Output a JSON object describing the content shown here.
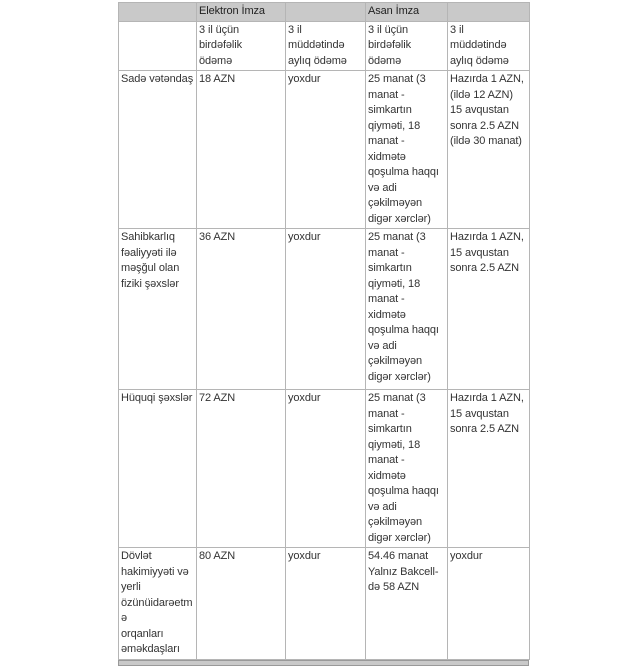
{
  "header": {
    "group1": "Elektron İmza",
    "group2": "Asan İmza"
  },
  "subheader": [
    "3 il üçün\nbirdəfəlik\nödəmə",
    "3 il\nmüddətində\naylıq ödəmə",
    "3 il üçün\nbirdəfəlik\nödəmə",
    "3 il\nmüddətində\naylıq ödəmə"
  ],
  "rows": [
    {
      "label": "Sadə vətəndaş",
      "e1": "18 AZN",
      "e2": "yoxdur",
      "a1": "25 manat (3\nmanat -\nsimkartın\nqiyməti, 18\nmanat -\nxidmətə\nqoşulma haqqı\nvə adi\nçəkilməyən\ndigər xərclər)",
      "a2": "Hazırda 1 AZN,\n(ildə 12 AZN)\n15 avqustan\nsonra 2.5 AZN\n(ildə 30 manat)"
    },
    {
      "label": "Sahibkarlıq\nfəaliyyəti ilə\nməşğul olan\nfiziki şəxslər",
      "e1": "36 AZN",
      "e2": "yoxdur",
      "a1": "25 manat (3\nmanat -\nsimkartın\nqiyməti, 18\nmanat -\nxidmətə\nqoşulma haqqı\nvə adi\nçəkilməyən\ndigər xərclər)",
      "a2": "Hazırda 1 AZN,\n15 avqustan\nsonra 2.5 AZN"
    },
    {
      "label": "Hüquqi şəxslər",
      "e1": "72 AZN",
      "e2": "yoxdur",
      "a1": "25 manat (3\nmanat -\nsimkartın\nqiyməti, 18\nmanat -\nxidmətə\nqoşulma haqqı\nvə adi\nçəkilməyən\ndigər xərclər)",
      "a2": "Hazırda 1 AZN,\n15 avqustan\nsonra 2.5 AZN"
    },
    {
      "label": "Dövlət\nhakimiyyəti və\nyerli\nözünüidarəetmə\norqanları\nəməkdaşları",
      "e1": "80 AZN",
      "e2": "yoxdur",
      "a1": "54.46 manat\nYalnız Bakcell-\ndə 58 AZN",
      "a2": "yoxdur"
    }
  ]
}
